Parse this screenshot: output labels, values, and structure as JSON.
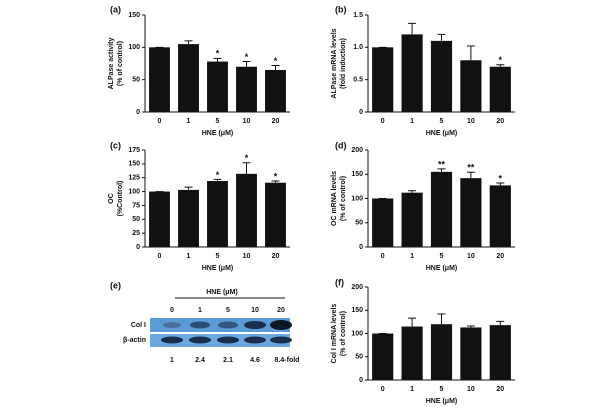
{
  "chart_data": [
    {
      "type": "bar",
      "panel_label": "(a)",
      "xlabel": "HNE (μM)",
      "ylabel": [
        "ALPase activity",
        "(% of control)"
      ],
      "categories": [
        "0",
        "1",
        "5",
        "10",
        "20"
      ],
      "values": [
        100,
        105,
        78,
        70,
        65
      ],
      "errors": [
        0,
        5,
        5,
        8,
        7
      ],
      "annotations": [
        null,
        null,
        "*",
        "*",
        "*"
      ],
      "color": "#111111",
      "ylim": [
        0,
        150
      ],
      "yticks": [
        0,
        50,
        100,
        150
      ]
    },
    {
      "type": "bar",
      "panel_label": "(b)",
      "xlabel": "HNE (μM)",
      "ylabel": [
        "ALPase mRNA levels",
        "(fold induction)"
      ],
      "categories": [
        "0",
        "1",
        "5",
        "10",
        "20"
      ],
      "values": [
        1.0,
        1.2,
        1.1,
        0.8,
        0.7
      ],
      "errors": [
        0,
        0.17,
        0.1,
        0.22,
        0.03
      ],
      "annotations": [
        null,
        null,
        null,
        null,
        "*"
      ],
      "color": "#111111",
      "ylim": [
        0,
        1.5
      ],
      "yticks": [
        0,
        0.5,
        {
          "value": 1,
          "label": "1.0"
        },
        1.5
      ]
    },
    {
      "type": "bar",
      "panel_label": "(c)",
      "xlabel": "HNE (μM)",
      "ylabel": [
        "OC",
        "(%Control)"
      ],
      "categories": [
        "0",
        "1",
        "5",
        "10",
        "20"
      ],
      "values": [
        100,
        103,
        119,
        132,
        116
      ],
      "errors": [
        0,
        5,
        3,
        20,
        3
      ],
      "annotations": [
        null,
        null,
        "*",
        "*",
        "*"
      ],
      "color": "#111111",
      "ylim": [
        0,
        175
      ],
      "yticks": [
        0,
        25,
        50,
        75,
        100,
        125,
        150,
        175
      ]
    },
    {
      "type": "bar",
      "panel_label": "(d)",
      "xlabel": "HNE (μM)",
      "ylabel": [
        "OC mRNA levels",
        "(% of control)"
      ],
      "categories": [
        "0",
        "1",
        "5",
        "10",
        "20"
      ],
      "values": [
        100,
        112,
        155,
        142,
        127
      ],
      "errors": [
        0,
        4,
        6,
        12,
        5
      ],
      "annotations": [
        null,
        null,
        "**",
        "**",
        "*"
      ],
      "color": "#111111",
      "ylim": [
        0,
        200
      ],
      "yticks": [
        0,
        50,
        100,
        150,
        200
      ]
    },
    {
      "type": "bar",
      "panel_label": "(f)",
      "xlabel": "HNE (μM)",
      "ylabel": [
        "Col I mRNA levels",
        "(% of control)"
      ],
      "categories": [
        "0",
        "1",
        "5",
        "10",
        "20"
      ],
      "values": [
        100,
        115,
        120,
        113,
        118
      ],
      "errors": [
        0,
        18,
        22,
        3,
        8
      ],
      "annotations": [
        null,
        null,
        null,
        null,
        null
      ],
      "color": "#111111",
      "ylim": [
        0,
        200
      ],
      "yticks": [
        0,
        50,
        100,
        150,
        200
      ]
    }
  ],
  "blot": {
    "panel_label": "(e)",
    "header": "HNE (μM)",
    "lanes": [
      "0",
      "1",
      "5",
      "10",
      "20"
    ],
    "rows": [
      "Col I",
      "β-actin"
    ],
    "folds": [
      "1",
      "2.4",
      "2.1",
      "4.6",
      "8.4-fold"
    ]
  }
}
